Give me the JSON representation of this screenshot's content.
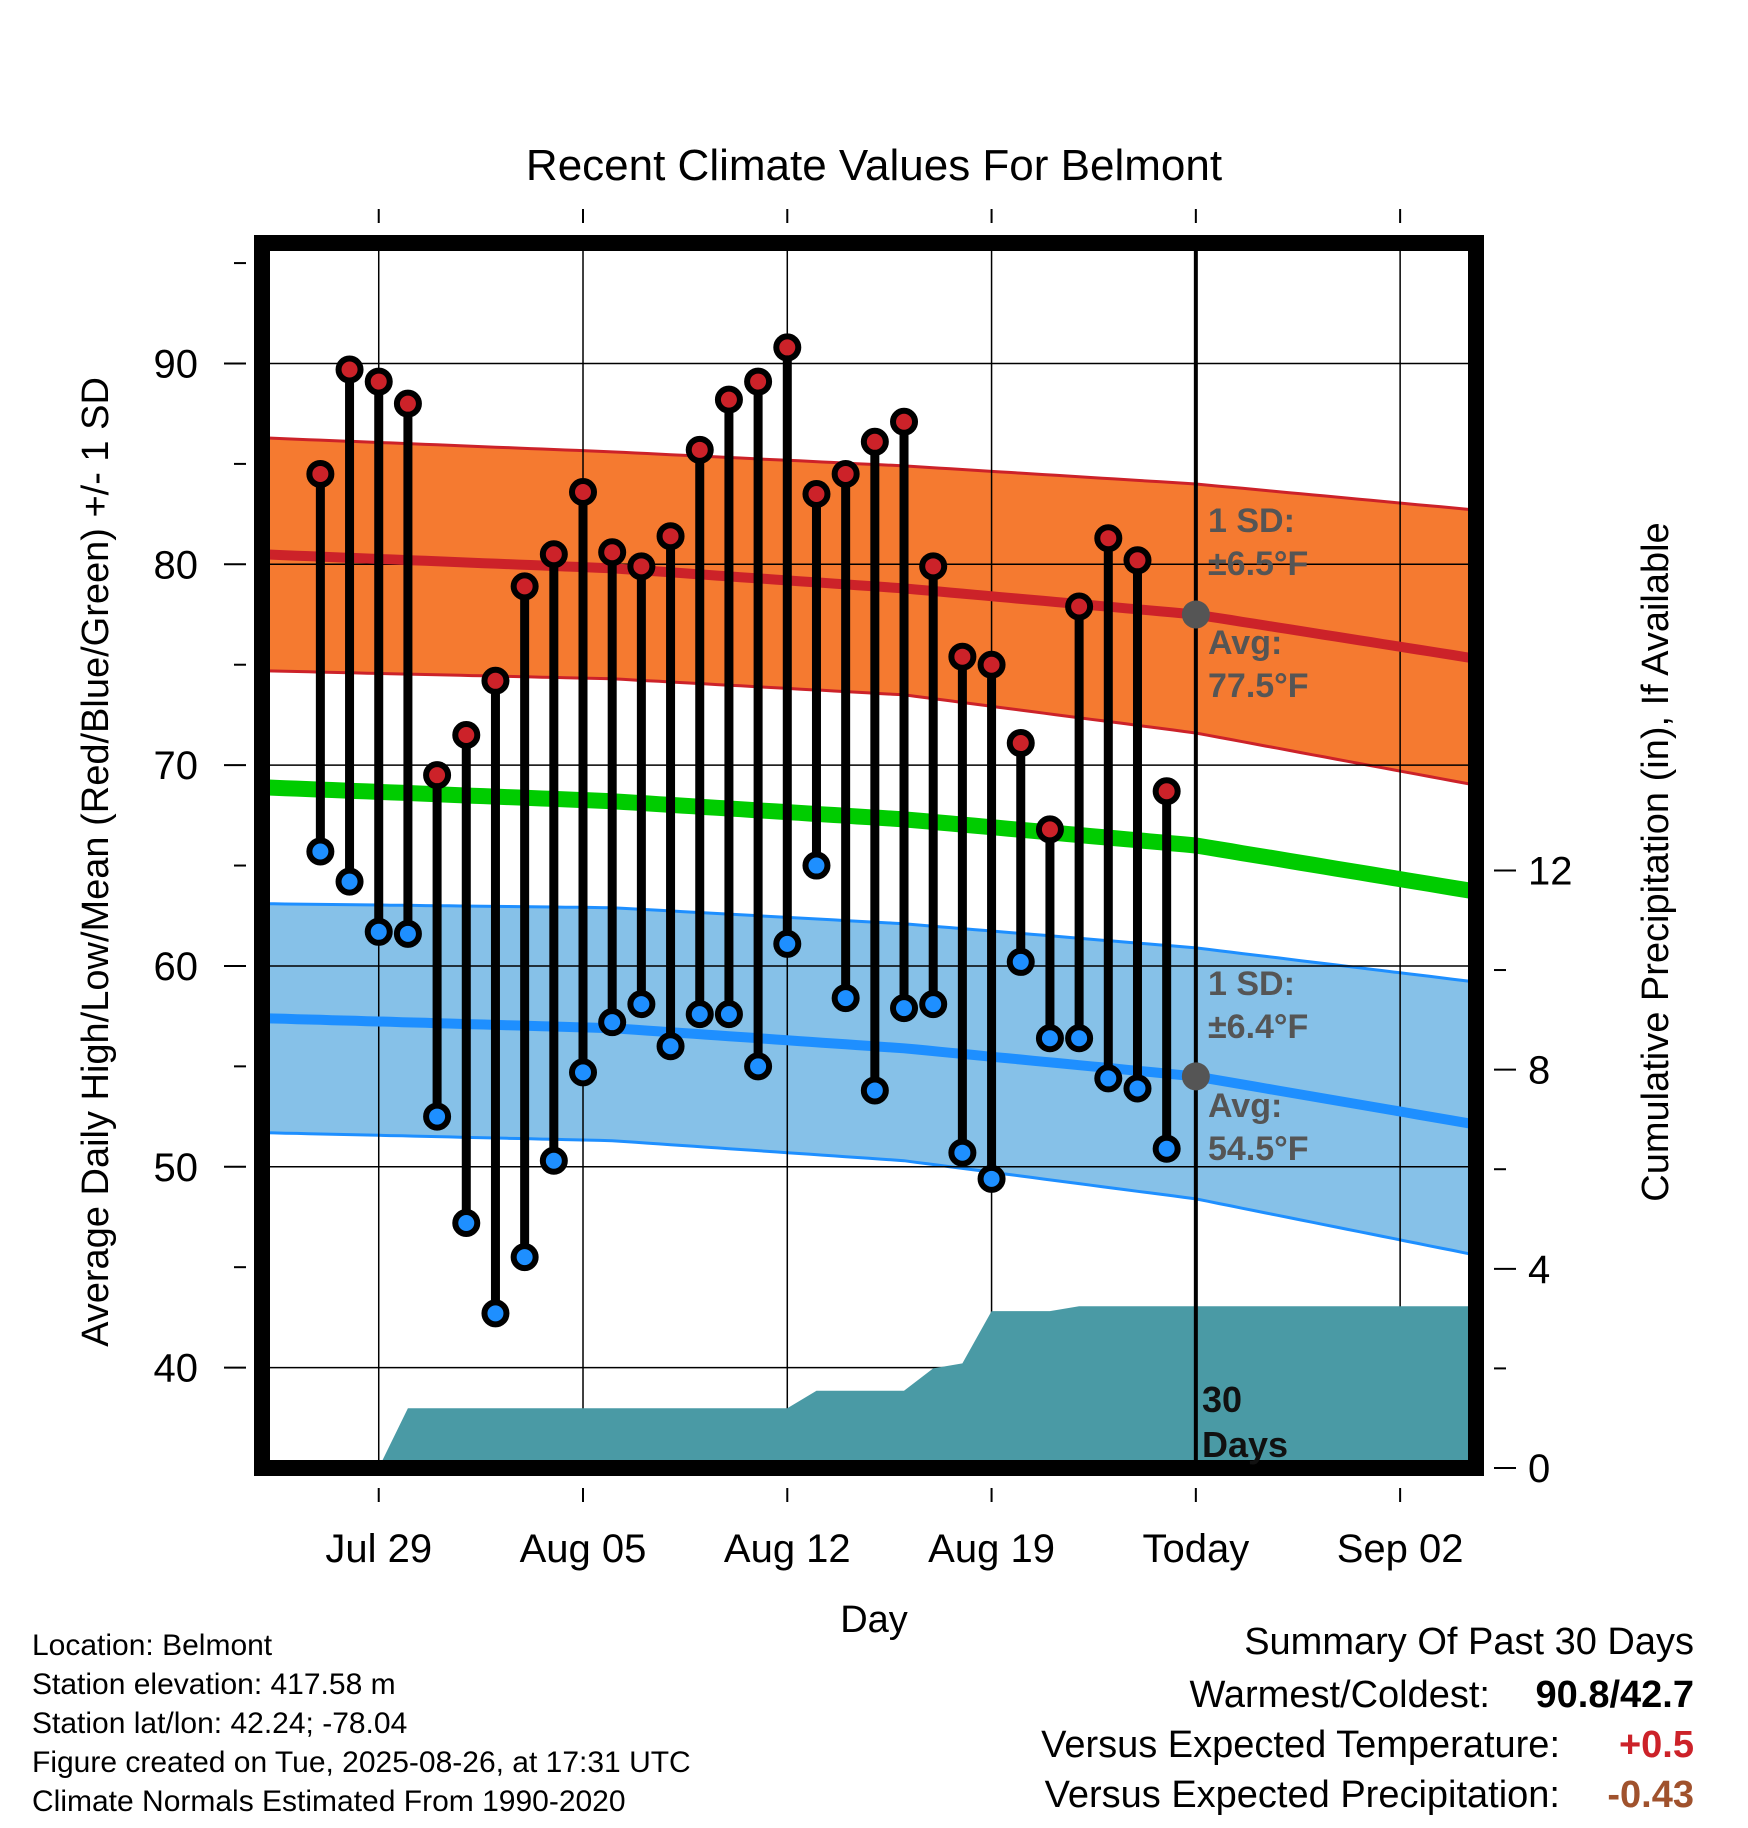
{
  "chart_data": {
    "type": "line",
    "title": "Recent Climate Values For Belmont",
    "xlabel": "Day",
    "ylabel": "Average Daily High/Low/Mean (Red/Blue/Green) +/- 1 SD",
    "y2label": "Cumulative Precipitation (in), If Available",
    "x_tick_labels": [
      "Jul 29",
      "Aug 05",
      "Aug 12",
      "Aug 19",
      "Today",
      "Sep 02"
    ],
    "y_ticks": [
      "40",
      "50",
      "60",
      "70",
      "80",
      "90"
    ],
    "y2_ticks": [
      "0",
      "4",
      "8",
      "12"
    ],
    "ylim": [
      35,
      96
    ],
    "y2lim": [
      0,
      24.6
    ],
    "x_days_range": [
      -32,
      9.6
    ],
    "grid": true,
    "days": [
      -30,
      -29,
      -28,
      -27,
      -26,
      -25,
      -24,
      -23,
      -22,
      -21,
      -20,
      -19,
      -18,
      -17,
      -16,
      -15,
      -14,
      -13,
      -12,
      -11,
      -10,
      -9,
      -8,
      -7,
      -6,
      -5,
      -4,
      -3,
      -2,
      -1
    ],
    "highs": [
      84.5,
      89.7,
      89.1,
      88.0,
      69.5,
      71.5,
      74.2,
      78.9,
      80.5,
      83.6,
      80.6,
      79.9,
      81.4,
      85.7,
      88.2,
      89.1,
      90.8,
      83.5,
      84.5,
      86.1,
      87.1,
      79.9,
      75.4,
      75.0,
      71.1,
      66.8,
      77.9,
      81.3,
      80.2,
      68.7
    ],
    "lows": [
      65.7,
      64.2,
      61.7,
      61.6,
      52.5,
      47.2,
      42.7,
      45.5,
      50.3,
      54.7,
      57.2,
      58.1,
      56.0,
      57.6,
      57.6,
      55.0,
      61.1,
      65.0,
      58.4,
      53.8,
      57.9,
      58.1,
      50.7,
      49.4,
      60.2,
      56.4,
      56.4,
      54.4,
      53.9,
      50.9
    ],
    "normal_high": {
      "days": [
        -32,
        -20,
        -10,
        0,
        9.6
      ],
      "avg": [
        80.5,
        79.8,
        78.8,
        77.5,
        75.3
      ],
      "upper": [
        86.3,
        85.6,
        84.9,
        84.0,
        82.7
      ],
      "lower": [
        74.7,
        74.3,
        73.5,
        71.6,
        69.0
      ]
    },
    "normal_low": {
      "days": [
        -32,
        -20,
        -10,
        0,
        9.6
      ],
      "avg": [
        57.4,
        56.9,
        55.9,
        54.5,
        52.1
      ],
      "upper": [
        63.1,
        62.9,
        62.1,
        60.9,
        59.2
      ],
      "lower": [
        51.7,
        51.3,
        50.3,
        48.4,
        45.6
      ]
    },
    "normal_mean": {
      "days": [
        -32,
        -20,
        -10,
        0,
        9.6
      ],
      "values": [
        68.9,
        68.2,
        67.3,
        66.0,
        63.7
      ]
    },
    "precip": {
      "days": [
        -28,
        -27,
        -26,
        -25,
        -24,
        -23,
        -22,
        -21,
        -20,
        -19,
        -18,
        -17,
        -16,
        -15,
        -14,
        -13,
        -12,
        -11,
        -10,
        -9,
        -8,
        -7,
        -6,
        -5,
        -4,
        -3,
        -2,
        -1,
        0,
        9.6
      ],
      "values": [
        0.0,
        1.2,
        1.2,
        1.2,
        1.2,
        1.2,
        1.2,
        1.2,
        1.2,
        1.2,
        1.2,
        1.2,
        1.2,
        1.2,
        1.2,
        1.55,
        1.55,
        1.55,
        1.55,
        2.0,
        2.1,
        3.15,
        3.15,
        3.15,
        3.25,
        3.25,
        3.25,
        3.25,
        3.25,
        3.25
      ]
    },
    "colors": {
      "high": "#cc2229",
      "low": "#1e8fff",
      "mean": "#00cc00",
      "high_band": "#f57a30",
      "low_band": "#86c1e8",
      "precip": "#4a9aa5"
    }
  },
  "annotations": {
    "high_sd_label": "1 SD:",
    "high_sd_value": "±6.5°F",
    "high_avg_label": "Avg:",
    "high_avg_value": "77.5°F",
    "low_sd_label": "1 SD:",
    "low_sd_value": "±6.4°F",
    "low_avg_label": "Avg:",
    "low_avg_value": "54.5°F",
    "days_count": "30",
    "days_word": "Days"
  },
  "footer": {
    "location": "Location: Belmont",
    "elevation": "Station elevation: 417.58 m",
    "latlon": "Station lat/lon: 42.24; -78.04",
    "created": "Figure created on Tue, 2025-08-26, at 17:31 UTC",
    "normals": "Climate Normals Estimated From 1990-2020"
  },
  "summary": {
    "heading": "Summary Of Past 30 Days",
    "warm_cold_label": "Warmest/Coldest:",
    "warm_cold_value": "90.8/42.7",
    "temp_label": "Versus Expected Temperature:",
    "temp_value": "+0.5",
    "temp_color": "#cc2229",
    "precip_label": "Versus Expected Precipitation:",
    "precip_value": "-0.43",
    "precip_color": "#a0522d"
  }
}
